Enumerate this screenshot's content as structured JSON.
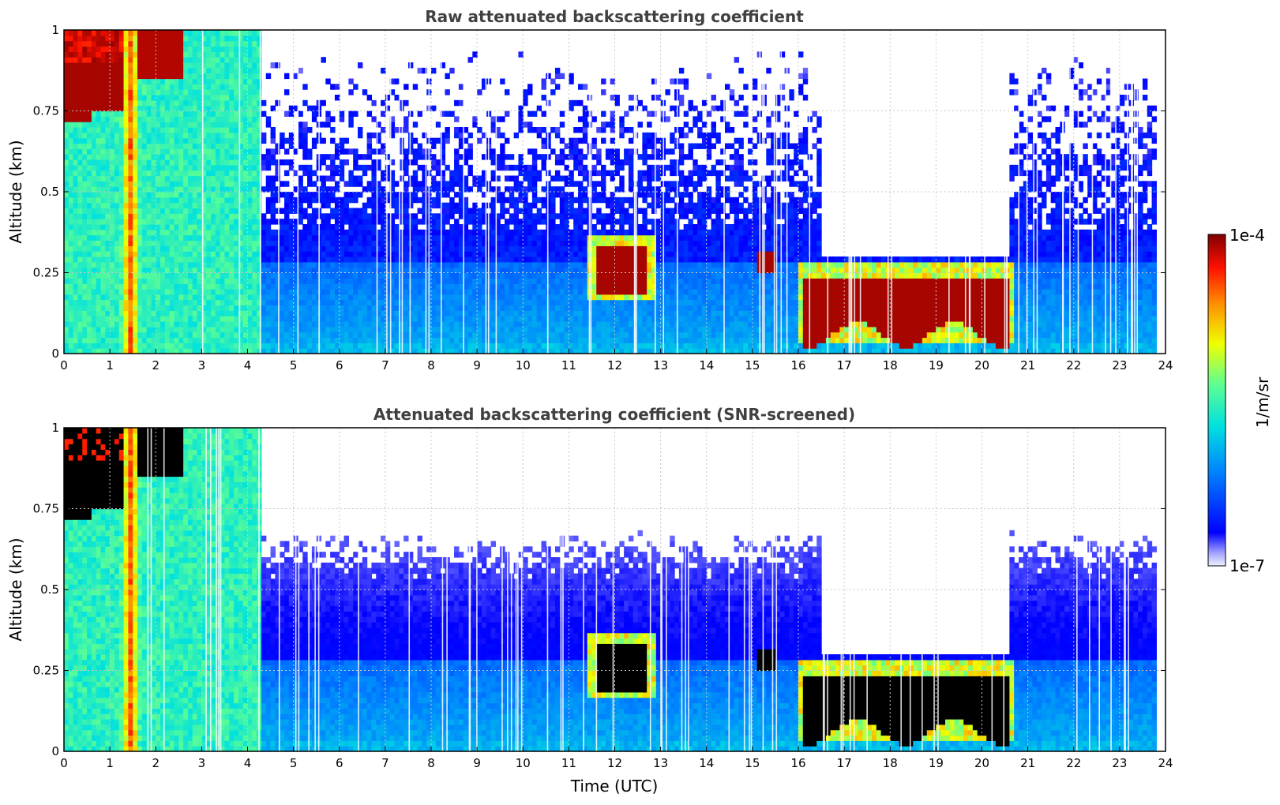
{
  "chart_data": [
    {
      "type": "heatmap",
      "title": "Raw attenuated backscattering coefficient",
      "xlabel": "",
      "ylabel": "Altitude (km)",
      "xlim": [
        0,
        24
      ],
      "ylim": [
        0,
        1
      ],
      "x_ticks": [
        "0",
        "1",
        "2",
        "3",
        "4",
        "5",
        "6",
        "7",
        "8",
        "9",
        "10",
        "11",
        "12",
        "13",
        "14",
        "15",
        "16",
        "17",
        "18",
        "19",
        "20",
        "21",
        "22",
        "23",
        "24"
      ],
      "y_ticks": [
        "0",
        "0.25",
        "0.5",
        "0.75",
        "1"
      ],
      "grid": true,
      "screened": false
    },
    {
      "type": "heatmap",
      "title": "Attenuated backscattering coefficient (SNR-screened)",
      "xlabel": "Time (UTC)",
      "ylabel": "Altitude (km)",
      "xlim": [
        0,
        24
      ],
      "ylim": [
        0,
        1
      ],
      "x_ticks": [
        "0",
        "1",
        "2",
        "3",
        "4",
        "5",
        "6",
        "7",
        "8",
        "9",
        "10",
        "11",
        "12",
        "13",
        "14",
        "15",
        "16",
        "17",
        "18",
        "19",
        "20",
        "21",
        "22",
        "23",
        "24"
      ],
      "y_ticks": [
        "0",
        "0.25",
        "0.5",
        "0.75",
        "1"
      ],
      "grid": true,
      "screened": true
    }
  ],
  "colorbar": {
    "label": "1/m/sr",
    "max_label": "1e-4",
    "min_label": "1e-7",
    "scale": "log",
    "range": [
      1e-07,
      0.0001
    ]
  },
  "colors": {
    "title": "#404040",
    "grid": "#c8c8c8",
    "saturated_screened": "#000000"
  }
}
